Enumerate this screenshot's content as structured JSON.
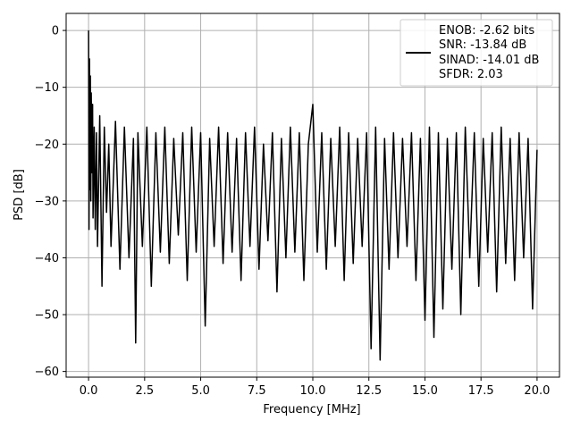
{
  "chart_data": {
    "type": "line",
    "title": "",
    "xlabel": "Frequency [MHz]",
    "ylabel": "PSD [dB]",
    "xlim": [
      -1.0,
      21.0
    ],
    "ylim": [
      -61.0,
      3.0
    ],
    "xticks": [
      0.0,
      2.5,
      5.0,
      7.5,
      10.0,
      12.5,
      15.0,
      17.5,
      20.0
    ],
    "xtick_labels": [
      "0.0",
      "2.5",
      "5.0",
      "7.5",
      "10.0",
      "12.5",
      "15.0",
      "17.5",
      "20.0"
    ],
    "yticks": [
      0,
      -10,
      -20,
      -30,
      -40,
      -50,
      -60
    ],
    "ytick_labels": [
      "0",
      "−10",
      "−20",
      "−30",
      "−40",
      "−50",
      "−60"
    ],
    "grid": true,
    "legend_position": "top-right",
    "legend_lines": [
      "ENOB: -2.62 bits",
      "SNR: -13.84 dB",
      "SINAD: -14.01 dB",
      "SFDR: 2.03"
    ],
    "series": [
      {
        "color": "#000000",
        "x": [
          0.0,
          0.02,
          0.04,
          0.06,
          0.08,
          0.1,
          0.12,
          0.15,
          0.18,
          0.2,
          0.25,
          0.3,
          0.35,
          0.4,
          0.5,
          0.6,
          0.7,
          0.8,
          0.9,
          1.0,
          1.2,
          1.4,
          1.6,
          1.8,
          2.0,
          2.1,
          2.2,
          2.4,
          2.6,
          2.8,
          3.0,
          3.2,
          3.4,
          3.6,
          3.8,
          4.0,
          4.2,
          4.4,
          4.6,
          4.8,
          5.0,
          5.2,
          5.4,
          5.6,
          5.8,
          6.0,
          6.2,
          6.4,
          6.6,
          6.8,
          7.0,
          7.2,
          7.4,
          7.6,
          7.8,
          8.0,
          8.2,
          8.4,
          8.6,
          8.8,
          9.0,
          9.2,
          9.4,
          9.6,
          9.8,
          10.0,
          10.2,
          10.4,
          10.6,
          10.8,
          11.0,
          11.2,
          11.4,
          11.6,
          11.8,
          12.0,
          12.2,
          12.4,
          12.6,
          12.8,
          13.0,
          13.2,
          13.4,
          13.6,
          13.8,
          14.0,
          14.2,
          14.4,
          14.6,
          14.8,
          15.0,
          15.2,
          15.4,
          15.6,
          15.8,
          16.0,
          16.2,
          16.4,
          16.6,
          16.8,
          17.0,
          17.2,
          17.4,
          17.6,
          17.8,
          18.0,
          18.2,
          18.4,
          18.6,
          18.8,
          19.0,
          19.2,
          19.4,
          19.6,
          19.8,
          20.0
        ],
        "y": [
          0.0,
          -35.0,
          -5.0,
          -28.0,
          -8.0,
          -30.0,
          -11.0,
          -25.0,
          -13.0,
          -33.0,
          -17.0,
          -35.0,
          -18.0,
          -38.0,
          -15.0,
          -45.0,
          -17.0,
          -32.0,
          -20.0,
          -38.0,
          -16.0,
          -42.0,
          -17.0,
          -40.0,
          -19.0,
          -55.0,
          -18.0,
          -38.0,
          -17.0,
          -45.0,
          -18.0,
          -39.0,
          -17.0,
          -41.0,
          -19.0,
          -36.0,
          -18.0,
          -44.0,
          -17.0,
          -39.0,
          -18.0,
          -52.0,
          -19.0,
          -38.0,
          -17.0,
          -41.0,
          -18.0,
          -39.0,
          -19.0,
          -44.0,
          -18.0,
          -38.0,
          -17.0,
          -42.0,
          -20.0,
          -37.0,
          -18.0,
          -46.0,
          -19.0,
          -40.0,
          -17.0,
          -39.0,
          -18.0,
          -44.0,
          -20.0,
          -13.0,
          -39.0,
          -18.0,
          -42.0,
          -19.0,
          -38.0,
          -17.0,
          -44.0,
          -18.0,
          -41.0,
          -19.0,
          -38.0,
          -18.0,
          -56.0,
          -17.0,
          -58.0,
          -19.0,
          -42.0,
          -18.0,
          -40.0,
          -19.0,
          -38.0,
          -18.0,
          -44.0,
          -19.0,
          -51.0,
          -17.0,
          -54.0,
          -18.0,
          -49.0,
          -19.0,
          -42.0,
          -18.0,
          -50.0,
          -17.0,
          -40.0,
          -18.0,
          -45.0,
          -19.0,
          -39.0,
          -18.0,
          -46.0,
          -17.0,
          -41.0,
          -19.0,
          -44.0,
          -18.0,
          -40.0,
          -19.0,
          -49.0,
          -21.0
        ]
      }
    ]
  }
}
